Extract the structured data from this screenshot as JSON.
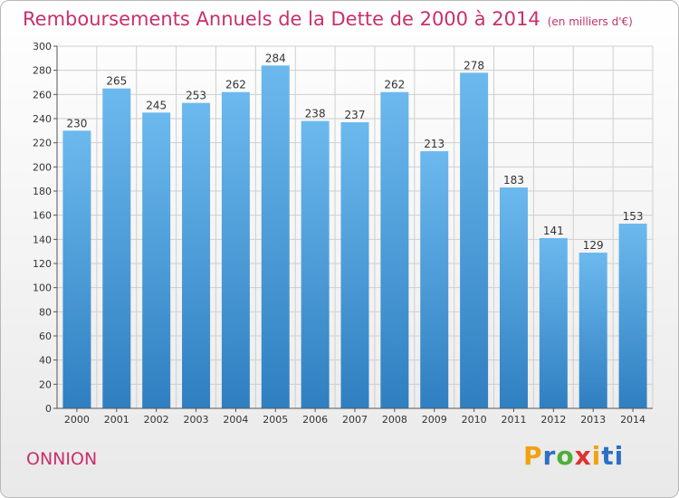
{
  "header": {
    "title": "Remboursements Annuels de la Dette de 2000 à 2014",
    "subtitle": "(en milliers d'€)"
  },
  "footer": {
    "commune": "ONNION",
    "logo_text": "Proxiti",
    "logo_parts": [
      "P",
      "r",
      "o",
      "x",
      "i",
      "ti"
    ]
  },
  "colors": {
    "title": "#c8306a",
    "bar_top": "#6cb9ee",
    "bar_bottom": "#2f7fc1",
    "grid": "#cfcfcf"
  },
  "chart_data": {
    "type": "bar",
    "title": "Remboursements Annuels de la Dette de 2000 à 2014",
    "xlabel": "",
    "ylabel": "",
    "categories": [
      "2000",
      "2001",
      "2002",
      "2003",
      "2004",
      "2005",
      "2006",
      "2007",
      "2008",
      "2009",
      "2010",
      "2011",
      "2012",
      "2013",
      "2014"
    ],
    "values": [
      230,
      265,
      245,
      253,
      262,
      284,
      238,
      237,
      262,
      213,
      278,
      183,
      141,
      129,
      153
    ],
    "ylim": [
      0,
      300
    ],
    "yticks": [
      0,
      20,
      40,
      60,
      80,
      100,
      120,
      140,
      160,
      180,
      200,
      220,
      240,
      260,
      280,
      300
    ],
    "grid": true
  }
}
